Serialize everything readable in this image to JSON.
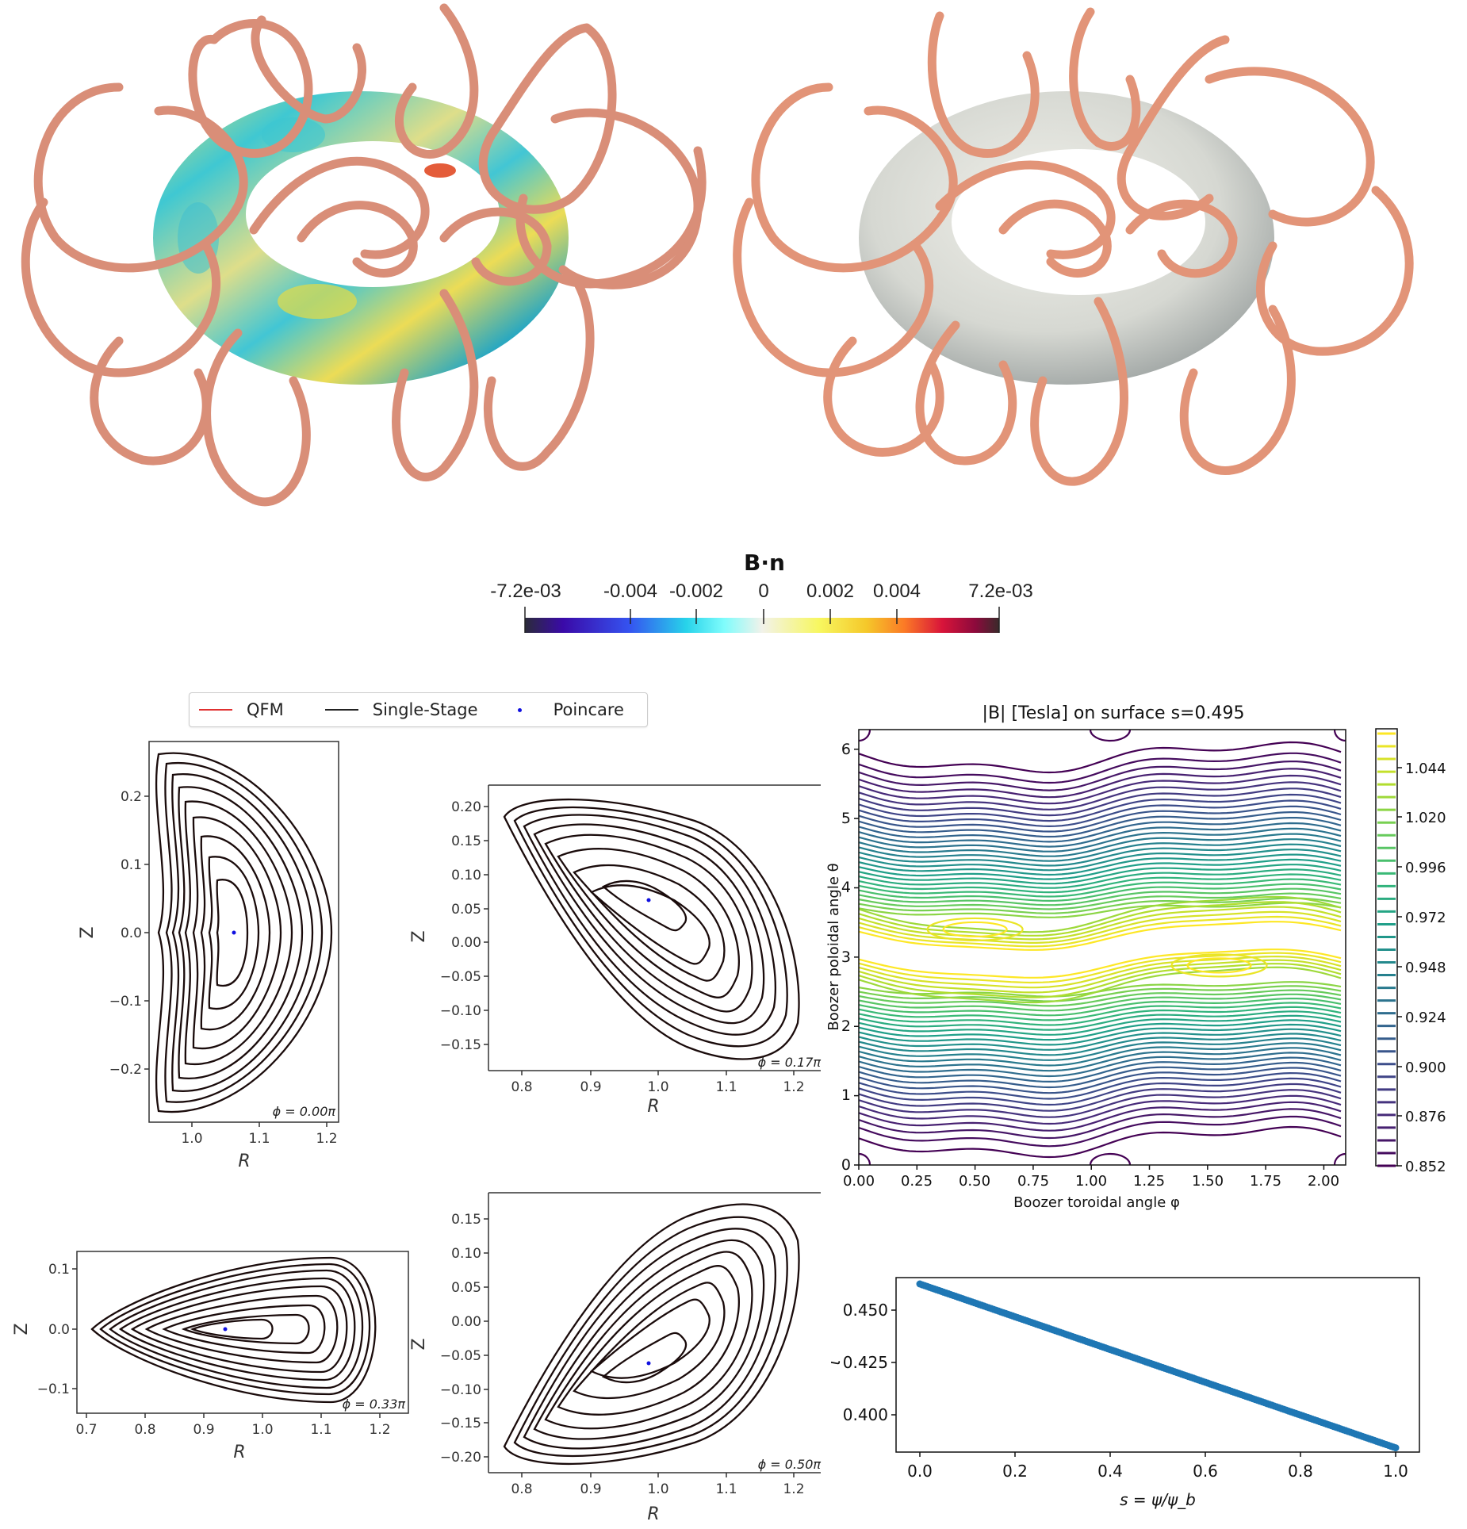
{
  "figure": {
    "top_renders": {
      "left": {
        "description": "Coils with QFM surface colored by B·n",
        "coil_color": "#e0907a"
      },
      "right": {
        "description": "Coils with single-stage optimized surface",
        "coil_color": "#e0907a",
        "surface_color": "#dcdcd6"
      }
    },
    "bn_colorbar": {
      "title": "B·n",
      "tick_labels": [
        "-7.2e-03",
        "-0.004",
        "-0.002",
        "0",
        "0.002",
        "0.004",
        "7.2e-03"
      ],
      "min": -0.0072,
      "max": 0.0072,
      "colormap_stops": [
        "#2b2b3a",
        "#3a0aa8",
        "#3553f0",
        "#27d3ea",
        "#7ffcfc",
        "#f2f2ea",
        "#f7f760",
        "#f5c82a",
        "#fb7a26",
        "#d8143a",
        "#8c0a3c",
        "#3a2a2a"
      ]
    },
    "legend": {
      "items": [
        {
          "label": "QFM",
          "type": "line",
          "color": "#e03030"
        },
        {
          "label": "Single-Stage",
          "type": "line",
          "color": "#222222"
        },
        {
          "label": "Poincare",
          "type": "dot",
          "color": "#1010e0"
        }
      ]
    }
  },
  "chart_data": [
    {
      "type": "scatter",
      "title": "",
      "annotation": "ϕ = 0.00π",
      "xlabel": "R",
      "ylabel": "Z",
      "xlim": [
        0.94,
        1.215
      ],
      "ylim": [
        -0.275,
        0.28
      ],
      "x_ticks": [
        "1.0",
        "1.1",
        "1.2"
      ],
      "y_ticks": [
        "−0.2",
        "−0.1",
        "0.0",
        "0.1",
        "0.2"
      ],
      "magnetic_axis": {
        "R": 1.04,
        "Z": 0.0
      },
      "num_surfaces": 12,
      "outer_surface_extent": {
        "R": [
          0.955,
          1.205
        ],
        "Z": [
          -0.25,
          0.25
        ]
      },
      "series": [
        {
          "name": "QFM"
        },
        {
          "name": "Single-Stage"
        },
        {
          "name": "Poincare"
        }
      ]
    },
    {
      "type": "scatter",
      "title": "",
      "annotation": "ϕ = 0.17π",
      "xlabel": "R",
      "ylabel": "Z",
      "xlim": [
        0.751,
        1.22
      ],
      "ylim": [
        -0.185,
        0.23
      ],
      "x_ticks": [
        "0.8",
        "0.9",
        "1.0",
        "1.1",
        "1.2"
      ],
      "y_ticks": [
        "−0.15",
        "−0.10",
        "−0.05",
        "0.00",
        "0.05",
        "0.10",
        "0.15",
        "0.20"
      ],
      "magnetic_axis": {
        "R": 0.984,
        "Z": 0.062
      },
      "num_surfaces": 11,
      "outer_surface_extent": {
        "R": [
          0.775,
          1.213
        ],
        "Z": [
          -0.17,
          0.215
        ]
      },
      "series": [
        {
          "name": "QFM"
        },
        {
          "name": "Single-Stage"
        },
        {
          "name": "Poincare"
        }
      ]
    },
    {
      "type": "scatter",
      "title": "",
      "annotation": "ϕ = 0.33π",
      "xlabel": "R",
      "ylabel": "Z",
      "xlim": [
        0.684,
        1.237
      ],
      "ylim": [
        -0.143,
        0.143
      ],
      "x_ticks": [
        "0.7",
        "0.8",
        "0.9",
        "1.0",
        "1.1",
        "1.2"
      ],
      "y_ticks": [
        "−0.1",
        "0.0",
        "0.1"
      ],
      "magnetic_axis": {
        "R": 0.935,
        "Z": 0.0
      },
      "num_surfaces": 12,
      "outer_surface_extent": {
        "R": [
          0.71,
          1.21
        ],
        "Z": [
          -0.13,
          0.13
        ]
      },
      "series": [
        {
          "name": "QFM"
        },
        {
          "name": "Single-Stage"
        },
        {
          "name": "Poincare"
        }
      ]
    },
    {
      "type": "scatter",
      "title": "",
      "annotation": "ϕ = 0.50π",
      "xlabel": "R",
      "ylabel": "Z",
      "xlim": [
        0.751,
        1.22
      ],
      "ylim": [
        -0.235,
        0.185
      ],
      "x_ticks": [
        "0.8",
        "0.9",
        "1.0",
        "1.1",
        "1.2"
      ],
      "y_ticks": [
        "−0.20",
        "−0.15",
        "−0.10",
        "−0.05",
        "0.00",
        "0.05",
        "0.10",
        "0.15"
      ],
      "magnetic_axis": {
        "R": 0.984,
        "Z": -0.062
      },
      "num_surfaces": 11,
      "outer_surface_extent": {
        "R": [
          0.775,
          1.213
        ],
        "Z": [
          -0.215,
          0.17
        ]
      },
      "series": [
        {
          "name": "QFM"
        },
        {
          "name": "Single-Stage"
        },
        {
          "name": "Poincare"
        }
      ]
    },
    {
      "type": "heatmap",
      "subtype": "contour",
      "title": "|B| [Tesla] on surface s=0.495",
      "xlabel": "Boozer toroidal angle φ",
      "ylabel": "Boozer poloidal angle θ",
      "xlim": [
        0.0,
        2.094
      ],
      "ylim": [
        0.0,
        6.283
      ],
      "x_ticks": [
        "0.00",
        "0.25",
        "0.50",
        "0.75",
        "1.00",
        "1.25",
        "1.50",
        "1.75",
        "2.00"
      ],
      "y_ticks": [
        "0",
        "1",
        "2",
        "3",
        "4",
        "5",
        "6"
      ],
      "colorbar": {
        "colormap": "viridis",
        "range": [
          0.852,
          1.062
        ],
        "tick_labels": [
          "0.852",
          "0.876",
          "0.900",
          "0.924",
          "0.948",
          "0.972",
          "0.996",
          "1.020",
          "1.044"
        ],
        "num_levels": 35
      },
      "features": {
        "min_regions_theta": [
          0.0,
          6.283
        ],
        "max_region_theta": 3.1,
        "max_islands": [
          {
            "phi": 0.5,
            "theta": 3.4
          },
          {
            "phi": 1.55,
            "theta": 2.88
          }
        ]
      }
    },
    {
      "type": "line",
      "title": "",
      "xlabel": "s = ψ/ψ_b",
      "ylabel": "ι",
      "xlim": [
        -0.05,
        1.05
      ],
      "ylim": [
        0.3785,
        0.4605
      ],
      "x_ticks": [
        "0.0",
        "0.2",
        "0.4",
        "0.6",
        "0.8",
        "1.0"
      ],
      "y_ticks": [
        "0.400",
        "0.425",
        "0.450"
      ],
      "x": [
        0.0,
        0.1,
        0.2,
        0.3,
        0.4,
        0.5,
        0.6,
        0.7,
        0.8,
        0.9,
        1.0
      ],
      "series": [
        {
          "name": "iota",
          "color": "#1f77b4",
          "marker": "o",
          "values": [
            0.4575,
            0.4498,
            0.4421,
            0.4344,
            0.4267,
            0.419,
            0.4113,
            0.4036,
            0.3959,
            0.3882,
            0.3805
          ]
        }
      ]
    }
  ]
}
